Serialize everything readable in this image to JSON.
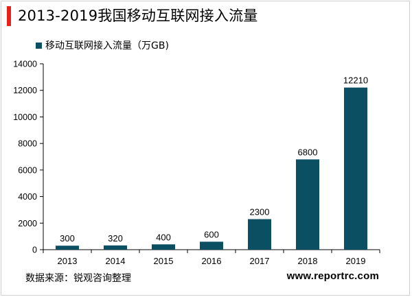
{
  "colors": {
    "bar": "#0b4f63",
    "accent": "#e8201a",
    "axis": "#000000"
  },
  "chart_data": {
    "type": "bar",
    "title": "2013-2019我国移动互联网接入流量",
    "categories": [
      "2013",
      "2014",
      "2015",
      "2016",
      "2017",
      "2018",
      "2019"
    ],
    "series": [
      {
        "name": "移动互联网接入流量（万GB)",
        "values": [
          300,
          320,
          400,
          600,
          2300,
          6800,
          12210
        ]
      }
    ],
    "data_labels": [
      "300",
      "320",
      "400",
      "600",
      "2300",
      "6800",
      "12210"
    ],
    "yticks": [
      0,
      2000,
      4000,
      6000,
      8000,
      10000,
      12000,
      14000
    ],
    "ylim": [
      0,
      14000
    ],
    "grid": false,
    "legend_position": "top-left"
  },
  "footer": {
    "source": "数据来源：锐观咨询整理",
    "site": "www.reportrc.com"
  }
}
